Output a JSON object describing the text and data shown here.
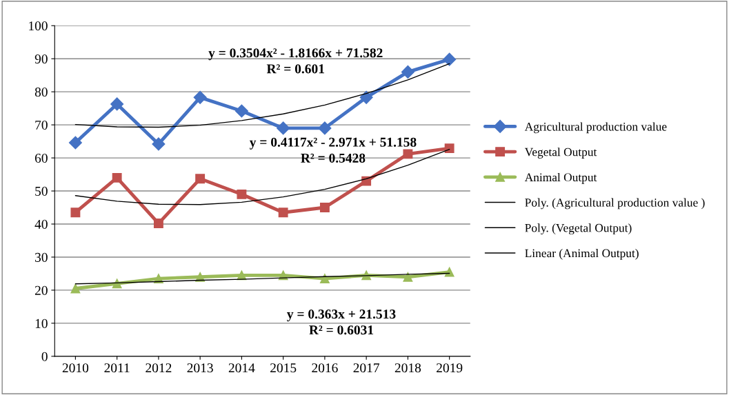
{
  "chart_data": {
    "type": "line",
    "categories": [
      "2010",
      "2011",
      "2012",
      "2013",
      "2014",
      "2015",
      "2016",
      "2017",
      "2018",
      "2019"
    ],
    "series": [
      {
        "name": "Agricultural production value",
        "color": "#4472c4",
        "marker": "diamond",
        "values": [
          64.6,
          76.3,
          64.2,
          78.3,
          74.2,
          69.0,
          69.0,
          78.3,
          86.0,
          89.8
        ]
      },
      {
        "name": "Vegetal Output",
        "color": "#c0504d",
        "marker": "square",
        "values": [
          43.5,
          54.0,
          40.2,
          53.7,
          49.0,
          43.5,
          45.0,
          53.0,
          61.2,
          62.9
        ]
      },
      {
        "name": "Animal Output",
        "color": "#9bbb59",
        "marker": "triangle",
        "values": [
          20.5,
          22.0,
          23.5,
          24.0,
          24.5,
          24.5,
          23.5,
          24.5,
          24.0,
          25.5
        ]
      },
      {
        "name": "Poly. (Agricultural production value )",
        "color": "#000000",
        "marker": "none",
        "values": [
          70.1,
          69.4,
          69.3,
          69.9,
          71.3,
          73.3,
          76.0,
          79.5,
          83.6,
          88.5
        ]
      },
      {
        "name": "Poly. (Vegetal Output)",
        "color": "#000000",
        "marker": "none",
        "values": [
          48.6,
          46.9,
          46.0,
          45.9,
          46.6,
          48.2,
          50.5,
          53.7,
          57.8,
          62.6
        ]
      },
      {
        "name": "Linear (Animal Output)",
        "color": "#000000",
        "marker": "none",
        "values": [
          21.9,
          22.2,
          22.6,
          23.0,
          23.3,
          23.7,
          24.1,
          24.4,
          24.8,
          25.1
        ]
      }
    ],
    "ylim": [
      0,
      100
    ],
    "yticks": [
      0,
      10,
      20,
      30,
      40,
      50,
      60,
      70,
      80,
      90,
      100
    ],
    "grid": "y",
    "legend": "right",
    "annotations": [
      "y = 0.3504x² - 1.8166x + 71.582\nR² = 0.601",
      "y = 0.4117x² - 2.971x + 51.158\nR² = 0.5428",
      "y = 0.363x + 21.513\nR² = 0.6031"
    ]
  }
}
